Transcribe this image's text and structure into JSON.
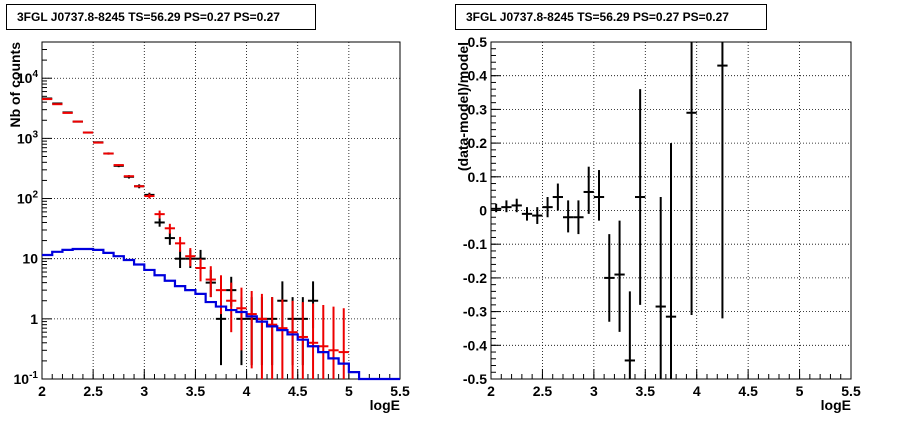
{
  "chart_data": [
    {
      "type": "line",
      "title": "3FGL J0737.8-8245 TS=56.29 PS=0.27 PS=0.27",
      "xlabel": "logE",
      "ylabel": "Nb of counts",
      "xlim": [
        2,
        5.5
      ],
      "ylim": [
        0.1,
        40000
      ],
      "yscale": "log",
      "grid": true,
      "x_ticks": [
        "2",
        "2.5",
        "3",
        "3.5",
        "4",
        "4.5",
        "5",
        "5.5"
      ],
      "y_ticks": [
        "10^-1",
        "1",
        "10",
        "10^2",
        "10^3",
        "10^4"
      ],
      "series": [
        {
          "kind": "points",
          "color": "#000000",
          "x": [
            2.05,
            2.15,
            2.25,
            2.35,
            2.45,
            2.55,
            2.65,
            2.75,
            2.85,
            2.95,
            3.05,
            3.15,
            3.25,
            3.35,
            3.45,
            3.55,
            3.65,
            3.75,
            3.85,
            3.95,
            4.05,
            4.15,
            4.25,
            4.35,
            4.45,
            4.55,
            4.65
          ],
          "y": [
            4600,
            3800,
            2700,
            1900,
            1250,
            860,
            560,
            350,
            230,
            160,
            115,
            40,
            22,
            10,
            10,
            10,
            4,
            1,
            3,
            1,
            1,
            1,
            1,
            2,
            1,
            1,
            2
          ],
          "ylo": [
            4540,
            3740,
            2650,
            1860,
            1215,
            830,
            537,
            332,
            215,
            148,
            105,
            34,
            17,
            7,
            7,
            7,
            2.3,
            0.17,
            1.6,
            0.17,
            0.17,
            0.17,
            0.17,
            0.7,
            0.17,
            0.17,
            0.7
          ],
          "yhi": [
            4670,
            3860,
            2750,
            1945,
            1285,
            890,
            585,
            370,
            245,
            172,
            125,
            47,
            27,
            14,
            14,
            14,
            6.5,
            2.3,
            5,
            2.3,
            2.3,
            2.3,
            2.3,
            4.2,
            2.3,
            2.3,
            4.2
          ]
        },
        {
          "kind": "model-points",
          "color": "#ee0000",
          "x": [
            2.05,
            2.15,
            2.25,
            2.35,
            2.45,
            2.55,
            2.65,
            2.75,
            2.85,
            2.95,
            3.05,
            3.15,
            3.25,
            3.35,
            3.45,
            3.55,
            3.65,
            3.75,
            3.85,
            3.95,
            4.05,
            4.15,
            4.25,
            4.35,
            4.45,
            4.55,
            4.65,
            4.75,
            4.85,
            4.95
          ],
          "y": [
            4500,
            3700,
            2650,
            1900,
            1250,
            850,
            560,
            360,
            235,
            160,
            110,
            55,
            32,
            18,
            11,
            7,
            4.5,
            3,
            2,
            1.5,
            1.2,
            1,
            0.8,
            0.7,
            0.6,
            0.5,
            0.4,
            0.35,
            0.3,
            0.28
          ],
          "ylo": [
            4500,
            3700,
            2650,
            1900,
            1250,
            850,
            560,
            360,
            235,
            160,
            100,
            47,
            26,
            13,
            7.5,
            4.2,
            2.3,
            1.2,
            0.6,
            0.3,
            0.15,
            0.1,
            0.1,
            0.1,
            0.1,
            0.1,
            0.1,
            0.1,
            0.1,
            0.1
          ],
          "yhi": [
            4500,
            3700,
            2650,
            1900,
            1250,
            850,
            560,
            360,
            235,
            160,
            120,
            63,
            38,
            23,
            15,
            10,
            7.5,
            5.3,
            4,
            3.3,
            2.9,
            2.6,
            2.3,
            2.1,
            2,
            1.9,
            1.8,
            1.7,
            1.6,
            1.5
          ]
        },
        {
          "kind": "step",
          "color": "#0000dd",
          "edges": [
            2.0,
            2.1,
            2.2,
            2.3,
            2.4,
            2.5,
            2.6,
            2.7,
            2.8,
            2.9,
            3.0,
            3.1,
            3.2,
            3.3,
            3.4,
            3.5,
            3.6,
            3.7,
            3.8,
            3.9,
            4.0,
            4.1,
            4.2,
            4.3,
            4.4,
            4.5,
            4.6,
            4.7,
            4.8,
            4.9,
            5.0,
            5.1,
            5.5
          ],
          "values": [
            11.5,
            13,
            14,
            14.5,
            14.5,
            14,
            12.5,
            11,
            9.5,
            8,
            6.5,
            5.3,
            4.3,
            3.5,
            3,
            2.6,
            1.9,
            1.6,
            1.4,
            1.3,
            1.1,
            0.9,
            0.75,
            0.65,
            0.55,
            0.45,
            0.35,
            0.28,
            0.22,
            0.18,
            0.13,
            0.1
          ]
        }
      ]
    },
    {
      "type": "scatter",
      "title": "3FGL J0737.8-8245 TS=56.29 PS=0.27 PS=0.27",
      "xlabel": "logE",
      "ylabel": "(data-model)/model",
      "xlim": [
        2,
        5.5
      ],
      "ylim": [
        -0.5,
        0.5
      ],
      "grid": true,
      "x_ticks": [
        "2",
        "2.5",
        "3",
        "3.5",
        "4",
        "4.5",
        "5",
        "5.5"
      ],
      "y_ticks": [
        "-0.5",
        "-0.4",
        "-0.3",
        "-0.2",
        "-0.1",
        "0",
        "0.1",
        "0.2",
        "0.3",
        "0.4",
        "0.5"
      ],
      "series": [
        {
          "color": "#000000",
          "x": [
            2.05,
            2.15,
            2.25,
            2.35,
            2.45,
            2.55,
            2.65,
            2.75,
            2.85,
            2.95,
            3.05,
            3.15,
            3.25,
            3.35,
            3.45,
            3.65,
            3.75,
            3.95,
            4.25
          ],
          "y": [
            0.005,
            0.01,
            0.015,
            -0.01,
            -0.015,
            0.01,
            0.04,
            -0.02,
            -0.02,
            0.055,
            0.04,
            -0.2,
            -0.19,
            -0.445,
            0.04,
            -0.285,
            -0.315,
            0.29,
            0.43
          ],
          "ylo": [
            -0.005,
            -0.005,
            -0.005,
            -0.03,
            -0.04,
            -0.02,
            0.0,
            -0.065,
            -0.07,
            -0.01,
            -0.03,
            -0.33,
            -0.36,
            -0.71,
            -0.28,
            -0.61,
            -0.72,
            -0.31,
            -0.32
          ],
          "yhi": [
            0.02,
            0.03,
            0.035,
            0.01,
            0.01,
            0.04,
            0.08,
            0.03,
            0.03,
            0.13,
            0.12,
            -0.07,
            -0.03,
            -0.24,
            0.36,
            0.04,
            0.2,
            0.9,
            1.2
          ]
        }
      ]
    }
  ]
}
